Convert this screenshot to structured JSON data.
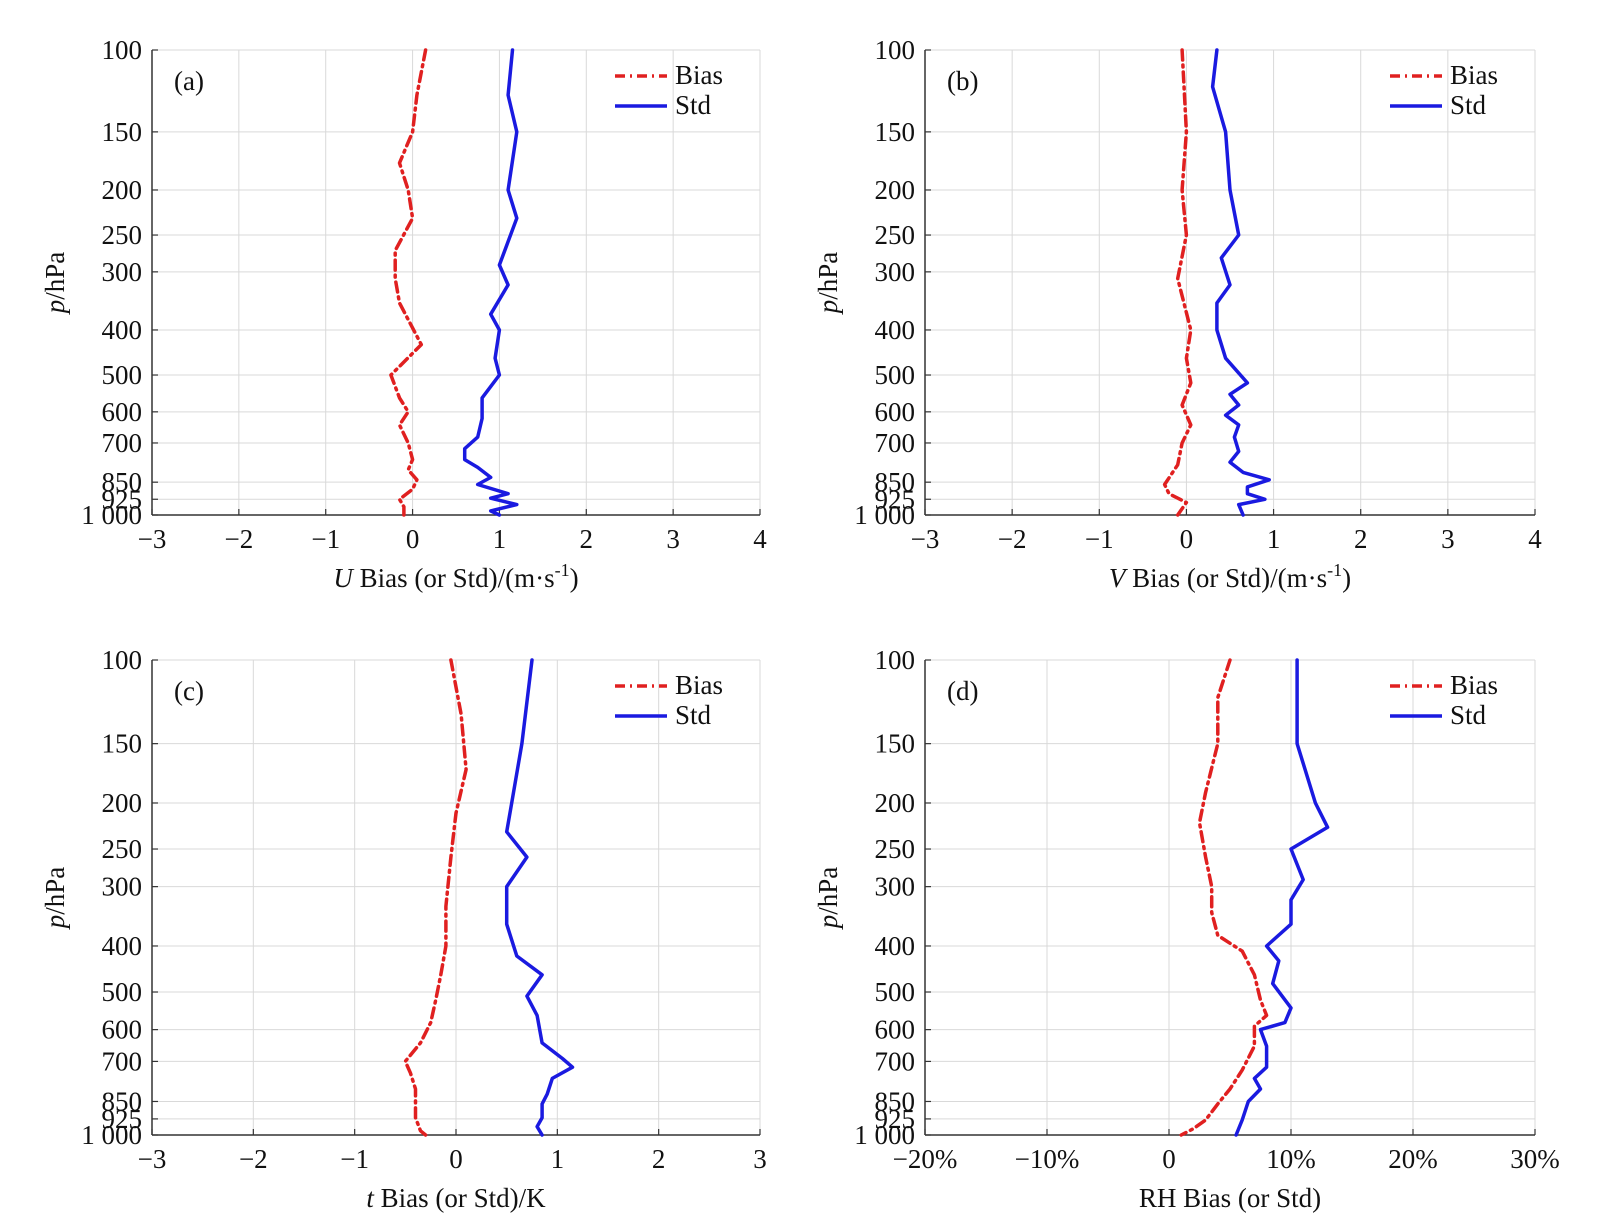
{
  "colors": {
    "bias": "#e02020",
    "std": "#1a1ae0",
    "grid": "#d9d9d9",
    "axis": "#333333"
  },
  "chart_data": [
    {
      "type": "line",
      "panel_label": "(a)",
      "xlabel_italic": "U",
      "xlabel_rest": " Bias (or Std)/(m·s",
      "xlabel_sup": "-1",
      "xlabel_tail": ")",
      "ylabel_italic": "p",
      "ylabel_rest": "/hPa",
      "xlim": [
        -3,
        4
      ],
      "xticks": [
        -3,
        -2,
        -1,
        0,
        1,
        2,
        3,
        4
      ],
      "xtick_labels": [
        "−3",
        "−2",
        "−1",
        "0",
        "1",
        "2",
        "3",
        "4"
      ],
      "ylim": [
        100,
        1000
      ],
      "y_scale": "log-pressure (inverted)",
      "yticks": [
        100,
        150,
        200,
        250,
        300,
        400,
        500,
        600,
        700,
        850,
        925,
        1000
      ],
      "ytick_labels": [
        "100",
        "150",
        "200",
        "250",
        "300",
        "400",
        "500",
        "600",
        "700",
        "850",
        "925",
        "1 000"
      ],
      "grid": true,
      "legend_position": "top-right",
      "series": [
        {
          "name": "Bias",
          "style": "dash-dot",
          "points": [
            [
              0.15,
              100
            ],
            [
              0.05,
              125
            ],
            [
              0.0,
              150
            ],
            [
              -0.15,
              175
            ],
            [
              -0.05,
              200
            ],
            [
              0.0,
              230
            ],
            [
              -0.2,
              270
            ],
            [
              -0.2,
              310
            ],
            [
              -0.15,
              350
            ],
            [
              0.1,
              430
            ],
            [
              -0.25,
              500
            ],
            [
              -0.15,
              560
            ],
            [
              -0.05,
              600
            ],
            [
              -0.15,
              640
            ],
            [
              -0.05,
              700
            ],
            [
              0.0,
              760
            ],
            [
              -0.05,
              800
            ],
            [
              0.05,
              840
            ],
            [
              0.0,
              880
            ],
            [
              -0.15,
              925
            ],
            [
              -0.1,
              960
            ],
            [
              -0.1,
              1000
            ]
          ]
        },
        {
          "name": "Std",
          "style": "solid",
          "points": [
            [
              1.15,
              100
            ],
            [
              1.1,
              125
            ],
            [
              1.2,
              150
            ],
            [
              1.1,
              200
            ],
            [
              1.2,
              230
            ],
            [
              1.0,
              290
            ],
            [
              1.1,
              320
            ],
            [
              0.9,
              370
            ],
            [
              1.0,
              400
            ],
            [
              0.95,
              460
            ],
            [
              1.0,
              500
            ],
            [
              0.8,
              560
            ],
            [
              0.8,
              620
            ],
            [
              0.75,
              680
            ],
            [
              0.6,
              720
            ],
            [
              0.6,
              760
            ],
            [
              0.75,
              790
            ],
            [
              0.9,
              830
            ],
            [
              0.75,
              860
            ],
            [
              1.1,
              900
            ],
            [
              0.9,
              920
            ],
            [
              1.2,
              950
            ],
            [
              0.9,
              980
            ],
            [
              1.0,
              1000
            ]
          ]
        }
      ]
    },
    {
      "type": "line",
      "panel_label": "(b)",
      "xlabel_italic": "V",
      "xlabel_rest": " Bias (or Std)/(m·s",
      "xlabel_sup": "-1",
      "xlabel_tail": ")",
      "ylabel_italic": "p",
      "ylabel_rest": "/hPa",
      "xlim": [
        -3,
        4
      ],
      "xticks": [
        -3,
        -2,
        -1,
        0,
        1,
        2,
        3,
        4
      ],
      "xtick_labels": [
        "−3",
        "−2",
        "−1",
        "0",
        "1",
        "2",
        "3",
        "4"
      ],
      "ylim": [
        100,
        1000
      ],
      "y_scale": "log-pressure (inverted)",
      "yticks": [
        100,
        150,
        200,
        250,
        300,
        400,
        500,
        600,
        700,
        850,
        925,
        1000
      ],
      "ytick_labels": [
        "100",
        "150",
        "200",
        "250",
        "300",
        "400",
        "500",
        "600",
        "700",
        "850",
        "925",
        "1 000"
      ],
      "grid": true,
      "legend_position": "top-right",
      "series": [
        {
          "name": "Bias",
          "style": "dash-dot",
          "points": [
            [
              -0.05,
              100
            ],
            [
              0.0,
              150
            ],
            [
              -0.05,
              200
            ],
            [
              0.0,
              250
            ],
            [
              -0.1,
              310
            ],
            [
              0.05,
              400
            ],
            [
              0.0,
              460
            ],
            [
              0.05,
              520
            ],
            [
              -0.05,
              580
            ],
            [
              0.05,
              640
            ],
            [
              -0.05,
              700
            ],
            [
              -0.1,
              780
            ],
            [
              -0.25,
              860
            ],
            [
              -0.2,
              900
            ],
            [
              0.0,
              940
            ],
            [
              -0.1,
              1000
            ]
          ]
        },
        {
          "name": "Std",
          "style": "solid",
          "points": [
            [
              0.35,
              100
            ],
            [
              0.3,
              120
            ],
            [
              0.45,
              150
            ],
            [
              0.5,
              200
            ],
            [
              0.6,
              250
            ],
            [
              0.4,
              280
            ],
            [
              0.5,
              320
            ],
            [
              0.35,
              350
            ],
            [
              0.35,
              400
            ],
            [
              0.45,
              460
            ],
            [
              0.7,
              520
            ],
            [
              0.5,
              550
            ],
            [
              0.6,
              580
            ],
            [
              0.45,
              610
            ],
            [
              0.6,
              640
            ],
            [
              0.55,
              680
            ],
            [
              0.6,
              730
            ],
            [
              0.5,
              770
            ],
            [
              0.65,
              810
            ],
            [
              0.95,
              840
            ],
            [
              0.7,
              870
            ],
            [
              0.7,
              900
            ],
            [
              0.9,
              925
            ],
            [
              0.6,
              950
            ],
            [
              0.65,
              1000
            ]
          ]
        }
      ]
    },
    {
      "type": "line",
      "panel_label": "(c)",
      "xlabel_italic": "t",
      "xlabel_rest": " Bias (or Std)/K",
      "xlabel_sup": "",
      "xlabel_tail": "",
      "ylabel_italic": "p",
      "ylabel_rest": "/hPa",
      "xlim": [
        -3,
        3
      ],
      "xticks": [
        -3,
        -2,
        -1,
        0,
        1,
        2,
        3
      ],
      "xtick_labels": [
        "−3",
        "−2",
        "−1",
        "0",
        "1",
        "2",
        "3"
      ],
      "ylim": [
        100,
        1000
      ],
      "y_scale": "log-pressure (inverted)",
      "yticks": [
        100,
        150,
        200,
        250,
        300,
        400,
        500,
        600,
        700,
        850,
        925,
        1000
      ],
      "ytick_labels": [
        "100",
        "150",
        "200",
        "250",
        "300",
        "400",
        "500",
        "600",
        "700",
        "850",
        "925",
        "1 000"
      ],
      "grid": true,
      "legend_position": "top-right",
      "series": [
        {
          "name": "Bias",
          "style": "dash-dot",
          "points": [
            [
              -0.05,
              100
            ],
            [
              0.05,
              130
            ],
            [
              0.1,
              170
            ],
            [
              0.0,
              210
            ],
            [
              -0.05,
              260
            ],
            [
              -0.1,
              330
            ],
            [
              -0.1,
              400
            ],
            [
              -0.15,
              460
            ],
            [
              -0.2,
              520
            ],
            [
              -0.25,
              580
            ],
            [
              -0.35,
              640
            ],
            [
              -0.5,
              700
            ],
            [
              -0.45,
              740
            ],
            [
              -0.4,
              800
            ],
            [
              -0.4,
              860
            ],
            [
              -0.4,
              920
            ],
            [
              -0.35,
              980
            ],
            [
              -0.3,
              1000
            ]
          ]
        },
        {
          "name": "Std",
          "style": "solid",
          "points": [
            [
              0.75,
              100
            ],
            [
              0.65,
              150
            ],
            [
              0.55,
              200
            ],
            [
              0.5,
              230
            ],
            [
              0.7,
              260
            ],
            [
              0.5,
              300
            ],
            [
              0.5,
              360
            ],
            [
              0.6,
              420
            ],
            [
              0.85,
              460
            ],
            [
              0.7,
              510
            ],
            [
              0.8,
              560
            ],
            [
              0.85,
              640
            ],
            [
              1.05,
              690
            ],
            [
              1.15,
              720
            ],
            [
              0.95,
              760
            ],
            [
              0.9,
              820
            ],
            [
              0.85,
              860
            ],
            [
              0.85,
              920
            ],
            [
              0.8,
              960
            ],
            [
              0.85,
              1000
            ]
          ]
        }
      ]
    },
    {
      "type": "line",
      "panel_label": "(d)",
      "xlabel_italic": "",
      "xlabel_rest": "RH Bias (or Std)",
      "xlabel_sup": "",
      "xlabel_tail": "",
      "ylabel_italic": "p",
      "ylabel_rest": "/hPa",
      "xlim": [
        -20,
        30
      ],
      "xticks": [
        -20,
        -10,
        0,
        10,
        20,
        30
      ],
      "xtick_labels": [
        "−20%",
        "−10%",
        "0",
        "10%",
        "20%",
        "30%"
      ],
      "ylim": [
        100,
        1000
      ],
      "y_scale": "log-pressure (inverted)",
      "yticks": [
        100,
        150,
        200,
        250,
        300,
        400,
        500,
        600,
        700,
        850,
        925,
        1000
      ],
      "ytick_labels": [
        "100",
        "150",
        "200",
        "250",
        "300",
        "400",
        "500",
        "600",
        "700",
        "850",
        "925",
        "1 000"
      ],
      "grid": true,
      "legend_position": "top-right",
      "series": [
        {
          "name": "Bias",
          "style": "dash-dot",
          "points": [
            [
              5,
              100
            ],
            [
              4,
              120
            ],
            [
              4,
              150
            ],
            [
              3,
              190
            ],
            [
              2.5,
              220
            ],
            [
              3,
              260
            ],
            [
              3.5,
              300
            ],
            [
              3.5,
              340
            ],
            [
              4,
              380
            ],
            [
              6,
              410
            ],
            [
              7,
              460
            ],
            [
              7.5,
              520
            ],
            [
              8,
              560
            ],
            [
              7,
              590
            ],
            [
              7,
              650
            ],
            [
              6,
              730
            ],
            [
              5,
              800
            ],
            [
              4,
              860
            ],
            [
              3,
              930
            ],
            [
              2,
              970
            ],
            [
              1,
              1000
            ]
          ]
        },
        {
          "name": "Std",
          "style": "solid",
          "points": [
            [
              10.5,
              100
            ],
            [
              10.5,
              150
            ],
            [
              12,
              200
            ],
            [
              13,
              225
            ],
            [
              10,
              250
            ],
            [
              11,
              290
            ],
            [
              10,
              320
            ],
            [
              10,
              360
            ],
            [
              8,
              400
            ],
            [
              9,
              430
            ],
            [
              8.5,
              480
            ],
            [
              10,
              540
            ],
            [
              9.5,
              580
            ],
            [
              7.5,
              600
            ],
            [
              8,
              650
            ],
            [
              8,
              720
            ],
            [
              7,
              760
            ],
            [
              7.5,
              800
            ],
            [
              6.5,
              850
            ],
            [
              6,
              930
            ],
            [
              5.5,
              1000
            ]
          ]
        }
      ]
    }
  ]
}
